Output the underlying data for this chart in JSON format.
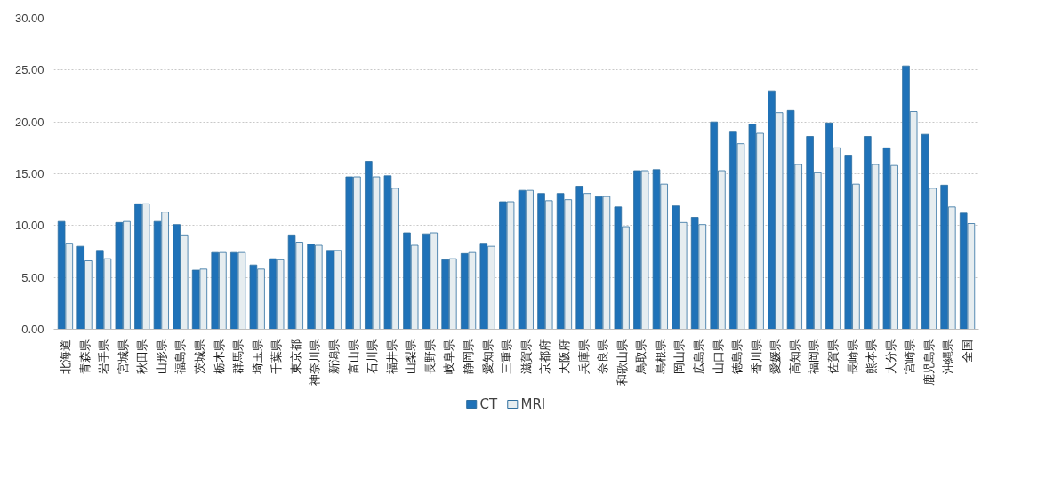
{
  "chart_data": {
    "type": "bar",
    "categories": [
      "北海道",
      "青森県",
      "岩手県",
      "宮城県",
      "秋田県",
      "山形県",
      "福島県",
      "茨城県",
      "栃木県",
      "群馬県",
      "埼玉県",
      "千葉県",
      "東京都",
      "神奈川県",
      "新潟県",
      "富山県",
      "石川県",
      "福井県",
      "山梨県",
      "長野県",
      "岐阜県",
      "静岡県",
      "愛知県",
      "三重県",
      "滋賀県",
      "京都府",
      "大阪府",
      "兵庫県",
      "奈良県",
      "和歌山県",
      "鳥取県",
      "島根県",
      "岡山県",
      "広島県",
      "山口県",
      "徳島県",
      "香川県",
      "愛媛県",
      "高知県",
      "福岡県",
      "佐賀県",
      "長崎県",
      "熊本県",
      "大分県",
      "宮崎県",
      "鹿児島県",
      "沖縄県",
      "全国"
    ],
    "series": [
      {
        "name": "CT",
        "color": "#1f72b8",
        "values": [
          10.4,
          8.0,
          7.6,
          10.3,
          12.1,
          10.4,
          10.1,
          5.7,
          7.4,
          7.4,
          6.2,
          6.8,
          9.1,
          8.2,
          7.6,
          14.7,
          16.2,
          14.8,
          9.3,
          9.2,
          6.7,
          7.3,
          8.3,
          12.3,
          13.4,
          13.1,
          13.1,
          13.8,
          12.8,
          11.8,
          15.3,
          15.4,
          11.9,
          10.8,
          20.0,
          19.1,
          19.8,
          23.0,
          21.1,
          18.6,
          19.9,
          16.8,
          18.6,
          17.5,
          25.4,
          18.8,
          13.9,
          11.2
        ]
      },
      {
        "name": "MRI",
        "color": "#e6edf0",
        "values": [
          8.3,
          6.6,
          6.8,
          10.4,
          12.1,
          11.3,
          9.1,
          5.8,
          7.4,
          7.4,
          5.8,
          6.7,
          8.4,
          8.1,
          7.6,
          14.7,
          14.7,
          13.6,
          8.1,
          9.3,
          6.8,
          7.4,
          8.0,
          12.3,
          13.4,
          12.4,
          12.5,
          13.1,
          12.8,
          9.9,
          15.3,
          14.0,
          10.3,
          10.1,
          15.3,
          17.9,
          18.9,
          20.9,
          15.9,
          15.1,
          17.5,
          14.0,
          15.9,
          15.8,
          21.0,
          13.6,
          11.8,
          10.2
        ]
      }
    ],
    "ylim": [
      0,
      30
    ],
    "yticks": [
      {
        "value": 0,
        "label": "0.00"
      },
      {
        "value": 5,
        "label": "5.00"
      },
      {
        "value": 10,
        "label": "10.00"
      },
      {
        "value": 15,
        "label": "15.00"
      },
      {
        "value": 20,
        "label": "20.00"
      },
      {
        "value": 25,
        "label": "25.00"
      },
      {
        "value": 30,
        "label": "30.00"
      }
    ],
    "grid": "y",
    "legend": "bottom"
  }
}
